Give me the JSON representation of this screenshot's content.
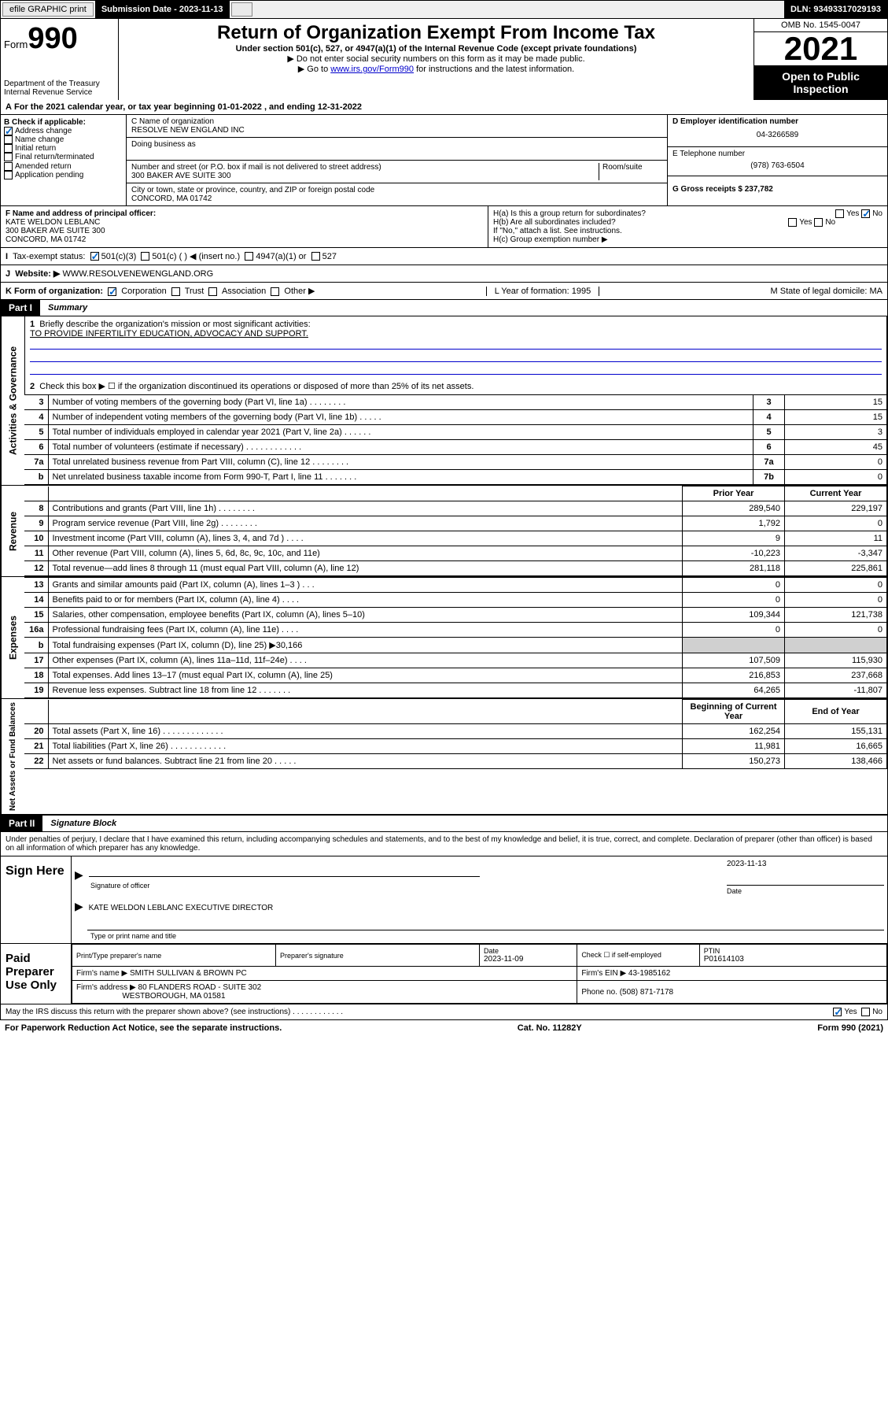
{
  "topbar": {
    "efile": "efile GRAPHIC print",
    "sub_label": "Submission Date - 2023-11-13",
    "dln": "DLN: 93493317029193"
  },
  "header": {
    "form_prefix": "Form",
    "form_num": "990",
    "dept": "Department of the Treasury",
    "irs": "Internal Revenue Service",
    "title": "Return of Organization Exempt From Income Tax",
    "sub1": "Under section 501(c), 527, or 4947(a)(1) of the Internal Revenue Code (except private foundations)",
    "sub2": "▶ Do not enter social security numbers on this form as it may be made public.",
    "sub3_pre": "▶ Go to ",
    "sub3_link": "www.irs.gov/Form990",
    "sub3_post": " for instructions and the latest information.",
    "omb": "OMB No. 1545-0047",
    "year": "2021",
    "open": "Open to Public Inspection"
  },
  "period": "For the 2021 calendar year, or tax year beginning 01-01-2022    , and ending 12-31-2022",
  "box_b": {
    "label": "B Check if applicable:",
    "items": [
      "Address change",
      "Name change",
      "Initial return",
      "Final return/terminated",
      "Amended return",
      "Application pending"
    ],
    "checked": [
      true,
      false,
      false,
      false,
      false,
      false
    ]
  },
  "box_c": {
    "name_label": "C Name of organization",
    "name": "RESOLVE NEW ENGLAND INC",
    "dba_label": "Doing business as",
    "street_label": "Number and street (or P.O. box if mail is not delivered to street address)",
    "room_label": "Room/suite",
    "street": "300 BAKER AVE SUITE 300",
    "city_label": "City or town, state or province, country, and ZIP or foreign postal code",
    "city": "CONCORD, MA  01742"
  },
  "box_d": {
    "ein_label": "D Employer identification number",
    "ein": "04-3266589",
    "phone_label": "E Telephone number",
    "phone": "(978) 763-6504",
    "gross_label": "G Gross receipts $ 237,782"
  },
  "box_f": {
    "label": "F  Name and address of principal officer:",
    "name": "KATE WELDON LEBLANC",
    "addr1": "300 BAKER AVE SUITE 300",
    "addr2": "CONCORD, MA  01742"
  },
  "box_h": {
    "ha": "H(a)  Is this a group return for subordinates?",
    "hb": "H(b)  Are all subordinates included?",
    "hb_note": "If \"No,\" attach a list. See instructions.",
    "hc": "H(c)  Group exemption number ▶"
  },
  "status": {
    "label": "Tax-exempt status:",
    "opts": [
      "501(c)(3)",
      "501(c) (  ) ◀ (insert no.)",
      "4947(a)(1) or",
      "527"
    ]
  },
  "website": {
    "label": "Website: ▶",
    "value": "WWW.RESOLVENEWENGLAND.ORG"
  },
  "korg": {
    "k": "K Form of organization:",
    "opts": [
      "Corporation",
      "Trust",
      "Association",
      "Other ▶"
    ],
    "l": "L Year of formation: 1995",
    "m": "M State of legal domicile: MA"
  },
  "part1": {
    "header": "Part I",
    "label": "Summary",
    "q1": "Briefly describe the organization's mission or most significant activities:",
    "mission": "TO PROVIDE INFERTILITY EDUCATION, ADVOCACY AND SUPPORT.",
    "q2": "Check this box ▶ ☐  if the organization discontinued its operations or disposed of more than 25% of its net assets."
  },
  "governance": {
    "label": "Activities & Governance",
    "rows": [
      {
        "n": "3",
        "d": "Number of voting members of the governing body (Part VI, line 1a)   .   .   .   .   .   .   .   .",
        "b": "3",
        "v": "15"
      },
      {
        "n": "4",
        "d": "Number of independent voting members of the governing body (Part VI, line 1b)   .   .   .   .   .",
        "b": "4",
        "v": "15"
      },
      {
        "n": "5",
        "d": "Total number of individuals employed in calendar year 2021 (Part V, line 2a)   .   .   .   .   .   .",
        "b": "5",
        "v": "3"
      },
      {
        "n": "6",
        "d": "Total number of volunteers (estimate if necessary)   .   .   .   .   .   .   .   .   .   .   .   .",
        "b": "6",
        "v": "45"
      },
      {
        "n": "7a",
        "d": "Total unrelated business revenue from Part VIII, column (C), line 12   .   .   .   .   .   .   .   .",
        "b": "7a",
        "v": "0"
      },
      {
        "n": "b",
        "d": "Net unrelated business taxable income from Form 990-T, Part I, line 11   .   .   .   .   .   .   .",
        "b": "7b",
        "v": "0"
      }
    ]
  },
  "revenue": {
    "label": "Revenue",
    "col1": "Prior Year",
    "col2": "Current Year",
    "rows": [
      {
        "n": "8",
        "d": "Contributions and grants (Part VIII, line 1h)   .   .   .   .   .   .   .   .",
        "p": "289,540",
        "c": "229,197"
      },
      {
        "n": "9",
        "d": "Program service revenue (Part VIII, line 2g)   .   .   .   .   .   .   .   .",
        "p": "1,792",
        "c": "0"
      },
      {
        "n": "10",
        "d": "Investment income (Part VIII, column (A), lines 3, 4, and 7d )   .   .   .   .",
        "p": "9",
        "c": "11"
      },
      {
        "n": "11",
        "d": "Other revenue (Part VIII, column (A), lines 5, 6d, 8c, 9c, 10c, and 11e)",
        "p": "-10,223",
        "c": "-3,347"
      },
      {
        "n": "12",
        "d": "Total revenue—add lines 8 through 11 (must equal Part VIII, column (A), line 12)",
        "p": "281,118",
        "c": "225,861"
      }
    ]
  },
  "expenses": {
    "label": "Expenses",
    "rows": [
      {
        "n": "13",
        "d": "Grants and similar amounts paid (Part IX, column (A), lines 1–3 )   .   .   .",
        "p": "0",
        "c": "0"
      },
      {
        "n": "14",
        "d": "Benefits paid to or for members (Part IX, column (A), line 4)   .   .   .   .",
        "p": "0",
        "c": "0"
      },
      {
        "n": "15",
        "d": "Salaries, other compensation, employee benefits (Part IX, column (A), lines 5–10)",
        "p": "109,344",
        "c": "121,738"
      },
      {
        "n": "16a",
        "d": "Professional fundraising fees (Part IX, column (A), line 11e)   .   .   .   .",
        "p": "0",
        "c": "0"
      },
      {
        "n": "b",
        "d": "Total fundraising expenses (Part IX, column (D), line 25) ▶30,166",
        "p": "",
        "c": "",
        "shaded": true
      },
      {
        "n": "17",
        "d": "Other expenses (Part IX, column (A), lines 11a–11d, 11f–24e)   .   .   .   .",
        "p": "107,509",
        "c": "115,930"
      },
      {
        "n": "18",
        "d": "Total expenses. Add lines 13–17 (must equal Part IX, column (A), line 25)",
        "p": "216,853",
        "c": "237,668"
      },
      {
        "n": "19",
        "d": "Revenue less expenses. Subtract line 18 from line 12   .   .   .   .   .   .   .",
        "p": "64,265",
        "c": "-11,807"
      }
    ]
  },
  "netassets": {
    "label": "Net Assets or Fund Balances",
    "col1": "Beginning of Current Year",
    "col2": "End of Year",
    "rows": [
      {
        "n": "20",
        "d": "Total assets (Part X, line 16)   .   .   .   .   .   .   .   .   .   .   .   .   .",
        "p": "162,254",
        "c": "155,131"
      },
      {
        "n": "21",
        "d": "Total liabilities (Part X, line 26)   .   .   .   .   .   .   .   .   .   .   .   .",
        "p": "11,981",
        "c": "16,665"
      },
      {
        "n": "22",
        "d": "Net assets or fund balances. Subtract line 21 from line 20   .   .   .   .   .",
        "p": "150,273",
        "c": "138,466"
      }
    ]
  },
  "part2": {
    "header": "Part II",
    "label": "Signature Block",
    "decl": "Under penalties of perjury, I declare that I have examined this return, including accompanying schedules and statements, and to the best of my knowledge and belief, it is true, correct, and complete. Declaration of preparer (other than officer) is based on all information of which preparer has any knowledge."
  },
  "sign": {
    "label": "Sign Here",
    "sig_label": "Signature of officer",
    "date_label": "Date",
    "date": "2023-11-13",
    "name": "KATE WELDON LEBLANC  EXECUTIVE DIRECTOR",
    "name_label": "Type or print name and title"
  },
  "preparer": {
    "label": "Paid Preparer Use Only",
    "h1": "Print/Type preparer's name",
    "h2": "Preparer's signature",
    "h3": "Date",
    "h4": "Check ☐ if self-employed",
    "h5": "PTIN",
    "date": "2023-11-09",
    "ptin": "P01614103",
    "firm_name_label": "Firm's name    ▶",
    "firm_name": "SMITH SULLIVAN & BROWN PC",
    "firm_ein_label": "Firm's EIN ▶",
    "firm_ein": "43-1985162",
    "firm_addr_label": "Firm's address ▶",
    "firm_addr1": "80 FLANDERS ROAD - SUITE 302",
    "firm_addr2": "WESTBOROUGH, MA  01581",
    "phone_label": "Phone no.",
    "phone": "(508) 871-7178"
  },
  "discuss": "May the IRS discuss this return with the preparer shown above? (see instructions)   .   .   .   .   .   .   .   .   .   .   .   .",
  "footer": {
    "left": "For Paperwork Reduction Act Notice, see the separate instructions.",
    "mid": "Cat. No. 11282Y",
    "right": "Form 990 (2021)"
  }
}
